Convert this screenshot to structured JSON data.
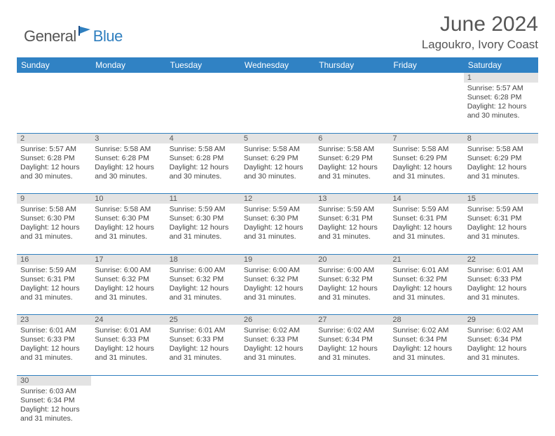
{
  "logo": {
    "text1": "General",
    "text2": "Blue"
  },
  "title": "June 2024",
  "location": "Lagoukro, Ivory Coast",
  "colors": {
    "header_bg": "#3082c4",
    "header_fg": "#ffffff",
    "daynum_bg": "#e3e3e3",
    "border": "#2f7fbf",
    "text": "#444444",
    "title_text": "#555555"
  },
  "day_headers": [
    "Sunday",
    "Monday",
    "Tuesday",
    "Wednesday",
    "Thursday",
    "Friday",
    "Saturday"
  ],
  "weeks": [
    [
      null,
      null,
      null,
      null,
      null,
      null,
      {
        "n": "1",
        "sr": "Sunrise: 5:57 AM",
        "ss": "Sunset: 6:28 PM",
        "d1": "Daylight: 12 hours",
        "d2": "and 30 minutes."
      }
    ],
    [
      {
        "n": "2",
        "sr": "Sunrise: 5:57 AM",
        "ss": "Sunset: 6:28 PM",
        "d1": "Daylight: 12 hours",
        "d2": "and 30 minutes."
      },
      {
        "n": "3",
        "sr": "Sunrise: 5:58 AM",
        "ss": "Sunset: 6:28 PM",
        "d1": "Daylight: 12 hours",
        "d2": "and 30 minutes."
      },
      {
        "n": "4",
        "sr": "Sunrise: 5:58 AM",
        "ss": "Sunset: 6:28 PM",
        "d1": "Daylight: 12 hours",
        "d2": "and 30 minutes."
      },
      {
        "n": "5",
        "sr": "Sunrise: 5:58 AM",
        "ss": "Sunset: 6:29 PM",
        "d1": "Daylight: 12 hours",
        "d2": "and 30 minutes."
      },
      {
        "n": "6",
        "sr": "Sunrise: 5:58 AM",
        "ss": "Sunset: 6:29 PM",
        "d1": "Daylight: 12 hours",
        "d2": "and 31 minutes."
      },
      {
        "n": "7",
        "sr": "Sunrise: 5:58 AM",
        "ss": "Sunset: 6:29 PM",
        "d1": "Daylight: 12 hours",
        "d2": "and 31 minutes."
      },
      {
        "n": "8",
        "sr": "Sunrise: 5:58 AM",
        "ss": "Sunset: 6:29 PM",
        "d1": "Daylight: 12 hours",
        "d2": "and 31 minutes."
      }
    ],
    [
      {
        "n": "9",
        "sr": "Sunrise: 5:58 AM",
        "ss": "Sunset: 6:30 PM",
        "d1": "Daylight: 12 hours",
        "d2": "and 31 minutes."
      },
      {
        "n": "10",
        "sr": "Sunrise: 5:58 AM",
        "ss": "Sunset: 6:30 PM",
        "d1": "Daylight: 12 hours",
        "d2": "and 31 minutes."
      },
      {
        "n": "11",
        "sr": "Sunrise: 5:59 AM",
        "ss": "Sunset: 6:30 PM",
        "d1": "Daylight: 12 hours",
        "d2": "and 31 minutes."
      },
      {
        "n": "12",
        "sr": "Sunrise: 5:59 AM",
        "ss": "Sunset: 6:30 PM",
        "d1": "Daylight: 12 hours",
        "d2": "and 31 minutes."
      },
      {
        "n": "13",
        "sr": "Sunrise: 5:59 AM",
        "ss": "Sunset: 6:31 PM",
        "d1": "Daylight: 12 hours",
        "d2": "and 31 minutes."
      },
      {
        "n": "14",
        "sr": "Sunrise: 5:59 AM",
        "ss": "Sunset: 6:31 PM",
        "d1": "Daylight: 12 hours",
        "d2": "and 31 minutes."
      },
      {
        "n": "15",
        "sr": "Sunrise: 5:59 AM",
        "ss": "Sunset: 6:31 PM",
        "d1": "Daylight: 12 hours",
        "d2": "and 31 minutes."
      }
    ],
    [
      {
        "n": "16",
        "sr": "Sunrise: 5:59 AM",
        "ss": "Sunset: 6:31 PM",
        "d1": "Daylight: 12 hours",
        "d2": "and 31 minutes."
      },
      {
        "n": "17",
        "sr": "Sunrise: 6:00 AM",
        "ss": "Sunset: 6:32 PM",
        "d1": "Daylight: 12 hours",
        "d2": "and 31 minutes."
      },
      {
        "n": "18",
        "sr": "Sunrise: 6:00 AM",
        "ss": "Sunset: 6:32 PM",
        "d1": "Daylight: 12 hours",
        "d2": "and 31 minutes."
      },
      {
        "n": "19",
        "sr": "Sunrise: 6:00 AM",
        "ss": "Sunset: 6:32 PM",
        "d1": "Daylight: 12 hours",
        "d2": "and 31 minutes."
      },
      {
        "n": "20",
        "sr": "Sunrise: 6:00 AM",
        "ss": "Sunset: 6:32 PM",
        "d1": "Daylight: 12 hours",
        "d2": "and 31 minutes."
      },
      {
        "n": "21",
        "sr": "Sunrise: 6:01 AM",
        "ss": "Sunset: 6:32 PM",
        "d1": "Daylight: 12 hours",
        "d2": "and 31 minutes."
      },
      {
        "n": "22",
        "sr": "Sunrise: 6:01 AM",
        "ss": "Sunset: 6:33 PM",
        "d1": "Daylight: 12 hours",
        "d2": "and 31 minutes."
      }
    ],
    [
      {
        "n": "23",
        "sr": "Sunrise: 6:01 AM",
        "ss": "Sunset: 6:33 PM",
        "d1": "Daylight: 12 hours",
        "d2": "and 31 minutes."
      },
      {
        "n": "24",
        "sr": "Sunrise: 6:01 AM",
        "ss": "Sunset: 6:33 PM",
        "d1": "Daylight: 12 hours",
        "d2": "and 31 minutes."
      },
      {
        "n": "25",
        "sr": "Sunrise: 6:01 AM",
        "ss": "Sunset: 6:33 PM",
        "d1": "Daylight: 12 hours",
        "d2": "and 31 minutes."
      },
      {
        "n": "26",
        "sr": "Sunrise: 6:02 AM",
        "ss": "Sunset: 6:33 PM",
        "d1": "Daylight: 12 hours",
        "d2": "and 31 minutes."
      },
      {
        "n": "27",
        "sr": "Sunrise: 6:02 AM",
        "ss": "Sunset: 6:34 PM",
        "d1": "Daylight: 12 hours",
        "d2": "and 31 minutes."
      },
      {
        "n": "28",
        "sr": "Sunrise: 6:02 AM",
        "ss": "Sunset: 6:34 PM",
        "d1": "Daylight: 12 hours",
        "d2": "and 31 minutes."
      },
      {
        "n": "29",
        "sr": "Sunrise: 6:02 AM",
        "ss": "Sunset: 6:34 PM",
        "d1": "Daylight: 12 hours",
        "d2": "and 31 minutes."
      }
    ],
    [
      {
        "n": "30",
        "sr": "Sunrise: 6:03 AM",
        "ss": "Sunset: 6:34 PM",
        "d1": "Daylight: 12 hours",
        "d2": "and 31 minutes."
      },
      null,
      null,
      null,
      null,
      null,
      null
    ]
  ]
}
